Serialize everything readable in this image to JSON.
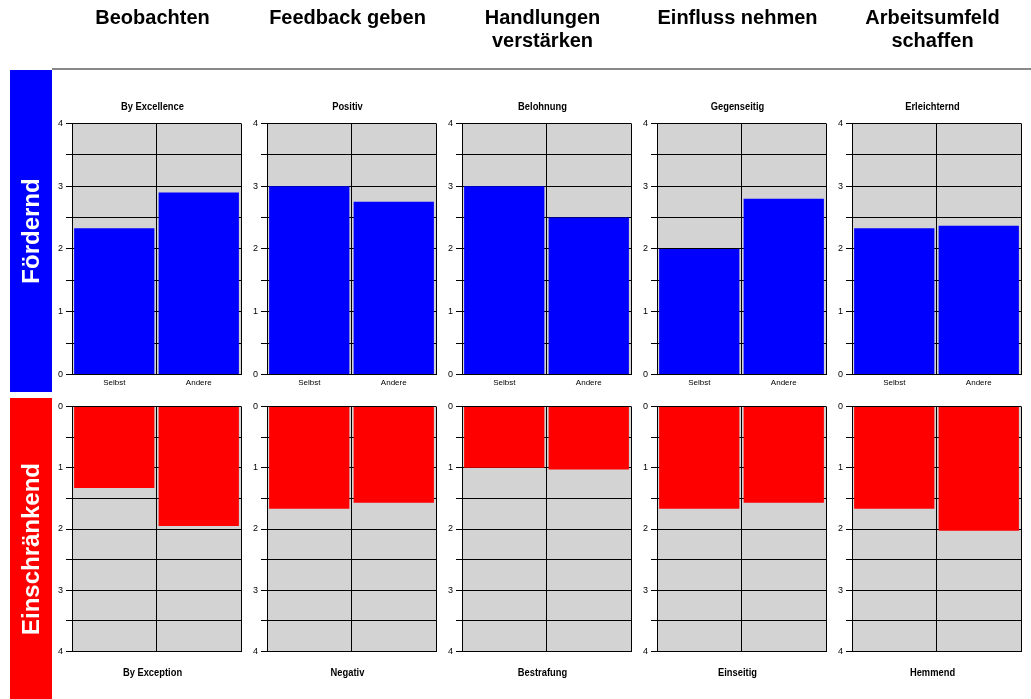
{
  "chart_data": [
    {
      "type": "bar",
      "title": "Beobachten",
      "subtitle": "By Excellence",
      "ylabel": "Fördernd",
      "categories": [
        "Selbst",
        "Andere"
      ],
      "series": [
        {
          "color": "#0000ff",
          "values": [
            2.33,
            2.9
          ]
        }
      ],
      "ylim": [
        0,
        4
      ],
      "yticks": [
        0,
        {
          "value": 0.5,
          "label": null
        },
        1,
        {
          "value": 1.5,
          "label": null
        },
        2,
        {
          "value": 2.5,
          "label": null
        },
        3,
        {
          "value": 3.5,
          "label": null
        },
        4
      ],
      "grid": true
    },
    {
      "type": "bar",
      "title": "Feedback geben",
      "subtitle": "Positiv",
      "categories": [
        "Selbst",
        "Andere"
      ],
      "series": [
        {
          "color": "#0000ff",
          "values": [
            3.0,
            2.75
          ]
        }
      ],
      "ylim": [
        0,
        4
      ],
      "yticks": [
        0,
        {
          "value": 0.5,
          "label": null
        },
        1,
        {
          "value": 1.5,
          "label": null
        },
        2,
        {
          "value": 2.5,
          "label": null
        },
        3,
        {
          "value": 3.5,
          "label": null
        },
        4
      ],
      "grid": true
    },
    {
      "type": "bar",
      "title": "Handlungen verstärken",
      "subtitle": "Belohnung",
      "categories": [
        "Selbst",
        "Andere"
      ],
      "series": [
        {
          "color": "#0000ff",
          "values": [
            3.0,
            2.5
          ]
        }
      ],
      "ylim": [
        0,
        4
      ],
      "yticks": [
        0,
        {
          "value": 0.5,
          "label": null
        },
        1,
        {
          "value": 1.5,
          "label": null
        },
        2,
        {
          "value": 2.5,
          "label": null
        },
        3,
        {
          "value": 3.5,
          "label": null
        },
        4
      ],
      "grid": true
    },
    {
      "type": "bar",
      "title": "Einfluss nehmen",
      "subtitle": "Gegenseitig",
      "categories": [
        "Selbst",
        "Andere"
      ],
      "series": [
        {
          "color": "#0000ff",
          "values": [
            2.0,
            2.8
          ]
        }
      ],
      "ylim": [
        0,
        4
      ],
      "yticks": [
        0,
        {
          "value": 0.5,
          "label": null
        },
        1,
        {
          "value": 1.5,
          "label": null
        },
        2,
        {
          "value": 2.5,
          "label": null
        },
        3,
        {
          "value": 3.5,
          "label": null
        },
        4
      ],
      "grid": true
    },
    {
      "type": "bar",
      "title": "Arbeitsumfeld schaffen",
      "subtitle": "Erleichternd",
      "categories": [
        "Selbst",
        "Andere"
      ],
      "series": [
        {
          "color": "#0000ff",
          "values": [
            2.33,
            2.37
          ]
        }
      ],
      "ylim": [
        0,
        4
      ],
      "yticks": [
        0,
        {
          "value": 0.5,
          "label": null
        },
        1,
        {
          "value": 1.5,
          "label": null
        },
        2,
        {
          "value": 2.5,
          "label": null
        },
        3,
        {
          "value": 3.5,
          "label": null
        },
        4
      ],
      "grid": true
    },
    {
      "type": "bar",
      "title": "By Exception",
      "ylabel": "Einschränkend",
      "categories": [
        null,
        null
      ],
      "series": [
        {
          "color": "#ff0000",
          "values": [
            1.33,
            1.95
          ]
        }
      ],
      "ylim": [
        4,
        0
      ],
      "yticks": [
        0,
        {
          "value": 0.5,
          "label": null
        },
        1,
        {
          "value": 1.5,
          "label": null
        },
        2,
        {
          "value": 2.5,
          "label": null
        },
        3,
        {
          "value": 3.5,
          "label": null
        },
        4
      ],
      "grid": true,
      "tick_labels": "y"
    },
    {
      "type": "bar",
      "title": "Negativ",
      "categories": [
        null,
        null
      ],
      "series": [
        {
          "color": "#ff0000",
          "values": [
            1.67,
            1.57
          ]
        }
      ],
      "ylim": [
        4,
        0
      ],
      "yticks": [
        0,
        {
          "value": 0.5,
          "label": null
        },
        1,
        {
          "value": 1.5,
          "label": null
        },
        2,
        {
          "value": 2.5,
          "label": null
        },
        3,
        {
          "value": 3.5,
          "label": null
        },
        4
      ],
      "grid": true,
      "tick_labels": "y"
    },
    {
      "type": "bar",
      "title": "Bestrafung",
      "categories": [
        null,
        null
      ],
      "series": [
        {
          "color": "#ff0000",
          "values": [
            1.0,
            1.03
          ]
        }
      ],
      "ylim": [
        4,
        0
      ],
      "yticks": [
        0,
        {
          "value": 0.5,
          "label": null
        },
        1,
        {
          "value": 1.5,
          "label": null
        },
        2,
        {
          "value": 2.5,
          "label": null
        },
        3,
        {
          "value": 3.5,
          "label": null
        },
        4
      ],
      "grid": true,
      "tick_labels": "y"
    },
    {
      "type": "bar",
      "title": "Einseitig",
      "categories": [
        null,
        null
      ],
      "series": [
        {
          "color": "#ff0000",
          "values": [
            1.67,
            1.57
          ]
        }
      ],
      "ylim": [
        4,
        0
      ],
      "yticks": [
        0,
        {
          "value": 0.5,
          "label": null
        },
        1,
        {
          "value": 1.5,
          "label": null
        },
        2,
        {
          "value": 2.5,
          "label": null
        },
        3,
        {
          "value": 3.5,
          "label": null
        },
        4
      ],
      "grid": true,
      "tick_labels": "y"
    },
    {
      "type": "bar",
      "title": "Hemmend",
      "categories": [
        null,
        null
      ],
      "series": [
        {
          "color": "#ff0000",
          "values": [
            1.67,
            2.03
          ]
        }
      ],
      "ylim": [
        4,
        0
      ],
      "yticks": [
        0,
        {
          "value": 0.5,
          "label": null
        },
        1,
        {
          "value": 1.5,
          "label": null
        },
        2,
        {
          "value": 2.5,
          "label": null
        },
        3,
        {
          "value": 3.5,
          "label": null
        },
        4
      ],
      "grid": true,
      "tick_labels": "y"
    }
  ]
}
